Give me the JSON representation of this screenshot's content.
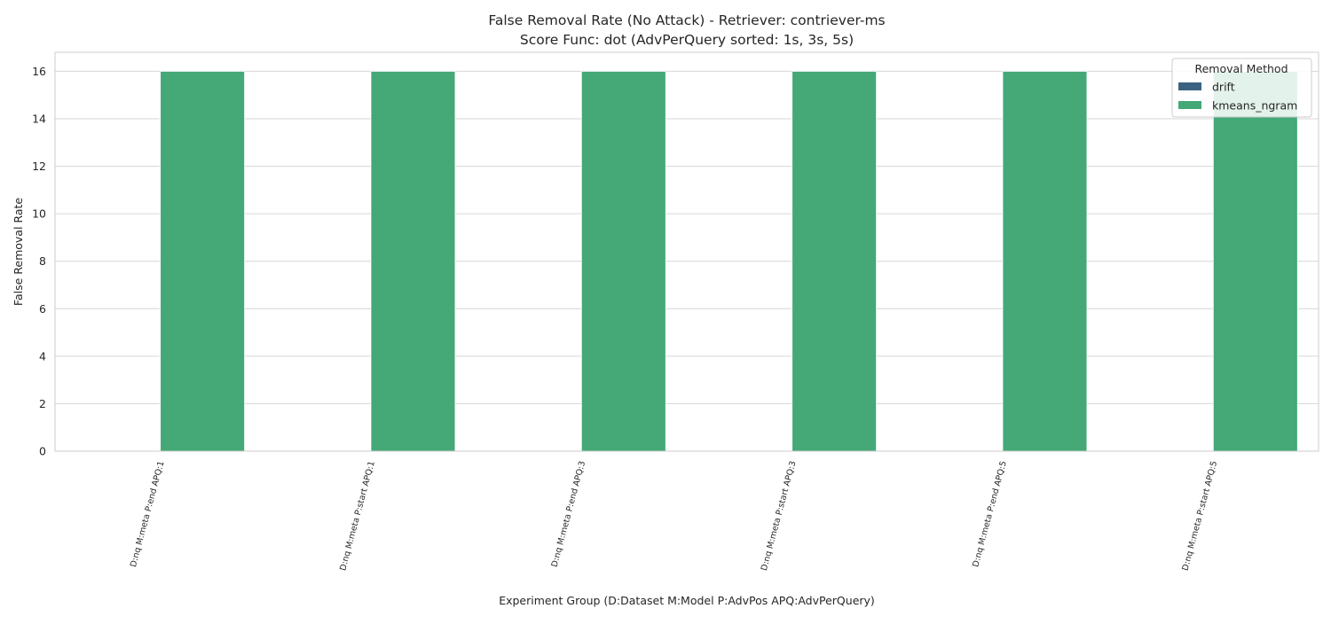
{
  "chart_data": {
    "type": "bar",
    "title_line1": "False Removal Rate (No Attack) - Retriever: contriever-ms",
    "title_line2": "Score Func: dot (AdvPerQuery sorted: 1s, 3s, 5s)",
    "xlabel": "Experiment Group (D:Dataset M:Model P:AdvPos APQ:AdvPerQuery)",
    "ylabel": "False Removal Rate",
    "ylim": [
      0,
      16.8
    ],
    "yticks": [
      0,
      2,
      4,
      6,
      8,
      10,
      12,
      14,
      16
    ],
    "grid": true,
    "categories": [
      "D:nq M:meta P:end APQ:1",
      "D:nq M:meta P:start APQ:1",
      "D:nq M:meta P:end APQ:3",
      "D:nq M:meta P:start APQ:3",
      "D:nq M:meta P:end APQ:5",
      "D:nq M:meta P:start APQ:5"
    ],
    "series": [
      {
        "name": "drift",
        "color": "#3b6381",
        "values": [
          0,
          0,
          0,
          0,
          0,
          0
        ]
      },
      {
        "name": "kmeans_ngram",
        "color": "#44a877",
        "values": [
          16,
          16,
          16,
          16,
          16,
          16
        ]
      }
    ],
    "legend": {
      "title": "Removal Method",
      "placement": "top-right"
    }
  }
}
